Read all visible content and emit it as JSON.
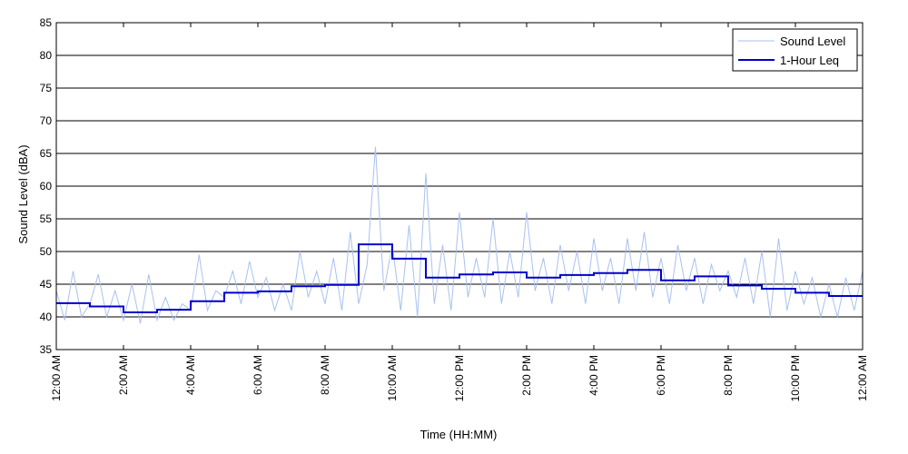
{
  "chart_data": {
    "type": "line",
    "title": "",
    "xlabel": "Time (HH:MM)",
    "ylabel": "Sound Level (dBA)",
    "ylim": [
      35,
      85
    ],
    "yticks": [
      35,
      40,
      45,
      50,
      55,
      60,
      65,
      70,
      75,
      80,
      85
    ],
    "xlim": [
      0,
      24
    ],
    "xticks": [
      {
        "hour": 0,
        "label": "12:00 AM"
      },
      {
        "hour": 2,
        "label": "2:00 AM"
      },
      {
        "hour": 4,
        "label": "4:00 AM"
      },
      {
        "hour": 6,
        "label": "6:00 AM"
      },
      {
        "hour": 8,
        "label": "8:00 AM"
      },
      {
        "hour": 10,
        "label": "10:00 AM"
      },
      {
        "hour": 12,
        "label": "12:00 PM"
      },
      {
        "hour": 14,
        "label": "2:00 PM"
      },
      {
        "hour": 16,
        "label": "4:00 PM"
      },
      {
        "hour": 18,
        "label": "6:00 PM"
      },
      {
        "hour": 20,
        "label": "8:00 PM"
      },
      {
        "hour": 22,
        "label": "10:00 PM"
      },
      {
        "hour": 24,
        "label": "12:00 AM"
      }
    ],
    "grid": "horizontal",
    "legend_position": "top-right",
    "series": [
      {
        "name": "Sound Level",
        "color": "#a9c0f0",
        "style": "thin",
        "x": [
          0.0,
          0.25,
          0.5,
          0.75,
          1.0,
          1.25,
          1.5,
          1.75,
          2.0,
          2.25,
          2.5,
          2.75,
          3.0,
          3.25,
          3.5,
          3.75,
          4.0,
          4.25,
          4.5,
          4.75,
          5.0,
          5.25,
          5.5,
          5.75,
          6.0,
          6.25,
          6.5,
          6.75,
          7.0,
          7.25,
          7.5,
          7.75,
          8.0,
          8.25,
          8.5,
          8.75,
          9.0,
          9.25,
          9.5,
          9.75,
          10.0,
          10.25,
          10.5,
          10.75,
          11.0,
          11.25,
          11.5,
          11.75,
          12.0,
          12.25,
          12.5,
          12.75,
          13.0,
          13.25,
          13.5,
          13.75,
          14.0,
          14.25,
          14.5,
          14.75,
          15.0,
          15.25,
          15.5,
          15.75,
          16.0,
          16.25,
          16.5,
          16.75,
          17.0,
          17.25,
          17.5,
          17.75,
          18.0,
          18.25,
          18.5,
          18.75,
          19.0,
          19.25,
          19.5,
          19.75,
          20.0,
          20.25,
          20.5,
          20.75,
          21.0,
          21.25,
          21.5,
          21.75,
          22.0,
          22.25,
          22.5,
          22.75,
          23.0,
          23.25,
          23.5,
          23.75,
          24.0
        ],
        "values": [
          44,
          39.5,
          47,
          40,
          42,
          46.5,
          40,
          44,
          39.5,
          45,
          39,
          46.5,
          39.5,
          43,
          39.5,
          42,
          41,
          49.5,
          41,
          44,
          43,
          47,
          42,
          48.5,
          43,
          46,
          41,
          45,
          41,
          50,
          43,
          47,
          42,
          49,
          41,
          53,
          42,
          48,
          66,
          44,
          51,
          41,
          54,
          40,
          62,
          42,
          51,
          41,
          56,
          43,
          49,
          43,
          55,
          42,
          50,
          43,
          56,
          44,
          49,
          42,
          51,
          44,
          50,
          42,
          52,
          44,
          49,
          42,
          52,
          44,
          53,
          43,
          49,
          42,
          51,
          44,
          49,
          42,
          48,
          44,
          47,
          43,
          49,
          42,
          50,
          40,
          52,
          41,
          47,
          42,
          46,
          40,
          45,
          40,
          46,
          41,
          47
        ]
      },
      {
        "name": "1-Hour Leq",
        "color": "#0000cc",
        "style": "step",
        "x": [
          0,
          1,
          2,
          3,
          4,
          5,
          6,
          7,
          8,
          9,
          10,
          11,
          12,
          13,
          14,
          15,
          16,
          17,
          18,
          19,
          20,
          21,
          22,
          23
        ],
        "values": [
          42.1,
          41.6,
          40.7,
          41.1,
          42.4,
          43.7,
          43.9,
          44.7,
          44.9,
          51.1,
          48.9,
          46.0,
          46.5,
          46.8,
          46.0,
          46.4,
          46.7,
          47.2,
          45.6,
          46.2,
          44.8,
          44.3,
          43.7,
          43.2
        ]
      }
    ]
  }
}
